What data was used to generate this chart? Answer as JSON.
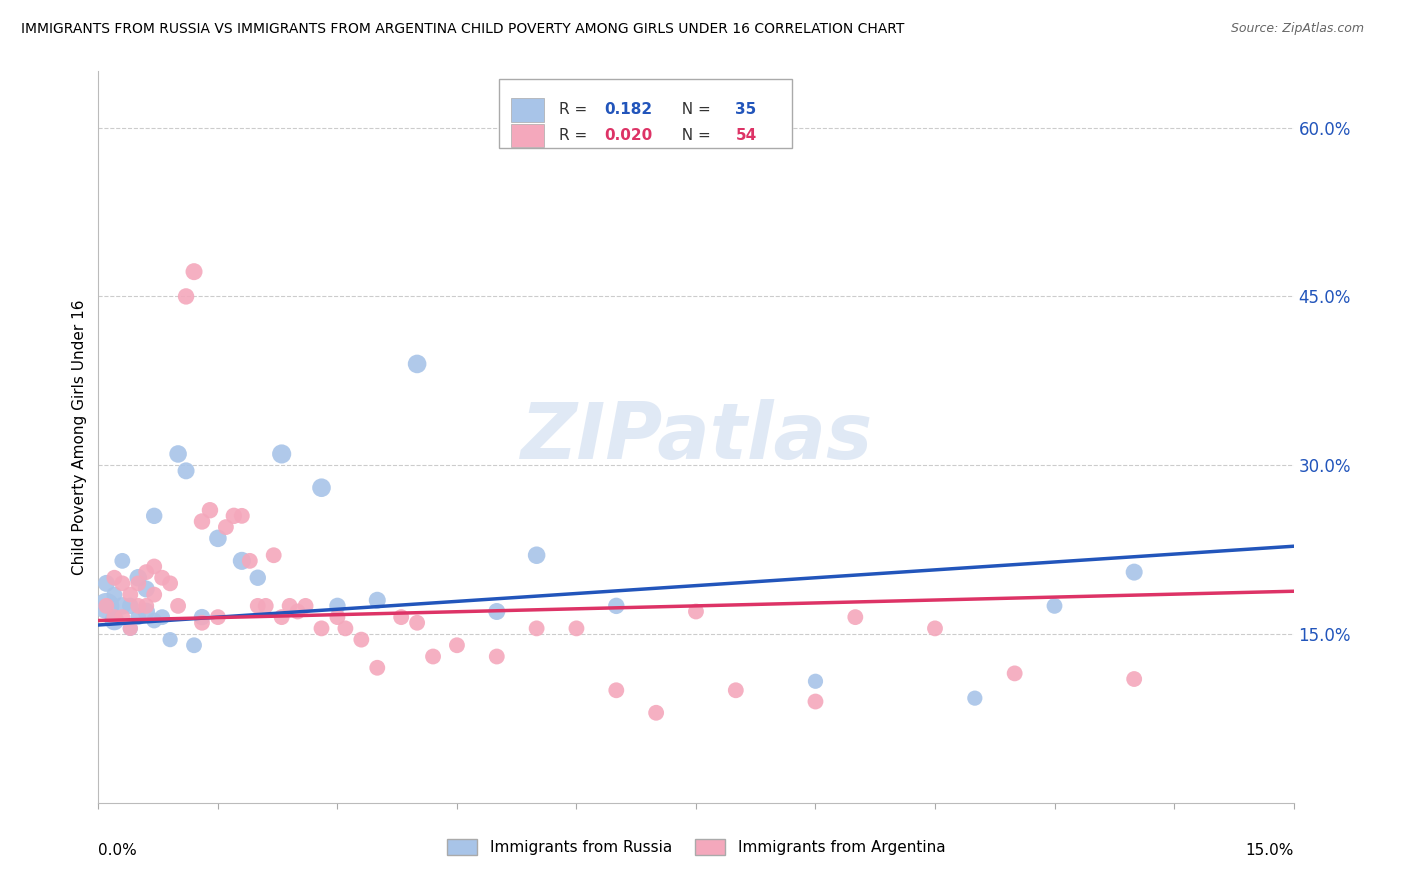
{
  "title": "IMMIGRANTS FROM RUSSIA VS IMMIGRANTS FROM ARGENTINA CHILD POVERTY AMONG GIRLS UNDER 16 CORRELATION CHART",
  "source": "Source: ZipAtlas.com",
  "ylabel": "Child Poverty Among Girls Under 16",
  "y_ticks": [
    0.0,
    0.15,
    0.3,
    0.45,
    0.6
  ],
  "y_tick_labels": [
    "",
    "15.0%",
    "30.0%",
    "45.0%",
    "60.0%"
  ],
  "x_range": [
    0.0,
    0.15
  ],
  "y_range": [
    0.0,
    0.65
  ],
  "russia_R": "0.182",
  "russia_N": "35",
  "argentina_R": "0.020",
  "argentina_N": "54",
  "russia_color": "#a8c4e8",
  "argentina_color": "#f4a8bc",
  "russia_line_color": "#2255bb",
  "argentina_line_color": "#dd3366",
  "russia_line_x": [
    0.0,
    0.15
  ],
  "russia_line_y": [
    0.158,
    0.228
  ],
  "argentina_line_x": [
    0.0,
    0.15
  ],
  "argentina_line_y": [
    0.162,
    0.188
  ],
  "russia_scatter_x": [
    0.001,
    0.001,
    0.002,
    0.002,
    0.003,
    0.003,
    0.004,
    0.004,
    0.005,
    0.005,
    0.006,
    0.006,
    0.007,
    0.007,
    0.008,
    0.009,
    0.01,
    0.011,
    0.012,
    0.013,
    0.015,
    0.018,
    0.02,
    0.023,
    0.028,
    0.03,
    0.035,
    0.04,
    0.05,
    0.055,
    0.065,
    0.09,
    0.11,
    0.12,
    0.13
  ],
  "russia_scatter_y": [
    0.175,
    0.195,
    0.162,
    0.185,
    0.175,
    0.215,
    0.155,
    0.175,
    0.2,
    0.165,
    0.17,
    0.19,
    0.255,
    0.162,
    0.165,
    0.145,
    0.31,
    0.295,
    0.14,
    0.165,
    0.235,
    0.215,
    0.2,
    0.31,
    0.28,
    0.175,
    0.18,
    0.39,
    0.17,
    0.22,
    0.175,
    0.108,
    0.093,
    0.175,
    0.205
  ],
  "russia_scatter_s": [
    350,
    150,
    200,
    130,
    160,
    130,
    120,
    140,
    160,
    130,
    160,
    150,
    140,
    130,
    130,
    120,
    160,
    150,
    130,
    140,
    160,
    170,
    140,
    190,
    180,
    140,
    150,
    180,
    150,
    160,
    140,
    120,
    120,
    130,
    150
  ],
  "argentina_scatter_x": [
    0.001,
    0.002,
    0.002,
    0.003,
    0.003,
    0.004,
    0.004,
    0.005,
    0.005,
    0.006,
    0.006,
    0.007,
    0.007,
    0.008,
    0.009,
    0.01,
    0.011,
    0.012,
    0.013,
    0.013,
    0.014,
    0.015,
    0.016,
    0.017,
    0.018,
    0.019,
    0.02,
    0.021,
    0.022,
    0.023,
    0.024,
    0.025,
    0.026,
    0.028,
    0.03,
    0.031,
    0.033,
    0.035,
    0.038,
    0.04,
    0.042,
    0.045,
    0.05,
    0.055,
    0.06,
    0.065,
    0.07,
    0.075,
    0.08,
    0.09,
    0.095,
    0.105,
    0.115,
    0.13
  ],
  "argentina_scatter_y": [
    0.175,
    0.165,
    0.2,
    0.165,
    0.195,
    0.155,
    0.185,
    0.175,
    0.195,
    0.175,
    0.205,
    0.185,
    0.21,
    0.2,
    0.195,
    0.175,
    0.45,
    0.472,
    0.25,
    0.16,
    0.26,
    0.165,
    0.245,
    0.255,
    0.255,
    0.215,
    0.175,
    0.175,
    0.22,
    0.165,
    0.175,
    0.17,
    0.175,
    0.155,
    0.165,
    0.155,
    0.145,
    0.12,
    0.165,
    0.16,
    0.13,
    0.14,
    0.13,
    0.155,
    0.155,
    0.1,
    0.08,
    0.17,
    0.1,
    0.09,
    0.165,
    0.155,
    0.115,
    0.11
  ],
  "argentina_scatter_s": [
    130,
    130,
    130,
    130,
    130,
    120,
    130,
    130,
    130,
    130,
    130,
    130,
    130,
    130,
    130,
    130,
    140,
    150,
    140,
    130,
    140,
    130,
    130,
    140,
    130,
    130,
    130,
    130,
    130,
    130,
    130,
    130,
    130,
    130,
    130,
    130,
    130,
    130,
    130,
    130,
    130,
    130,
    130,
    130,
    130,
    130,
    130,
    130,
    130,
    130,
    130,
    130,
    130,
    130
  ]
}
